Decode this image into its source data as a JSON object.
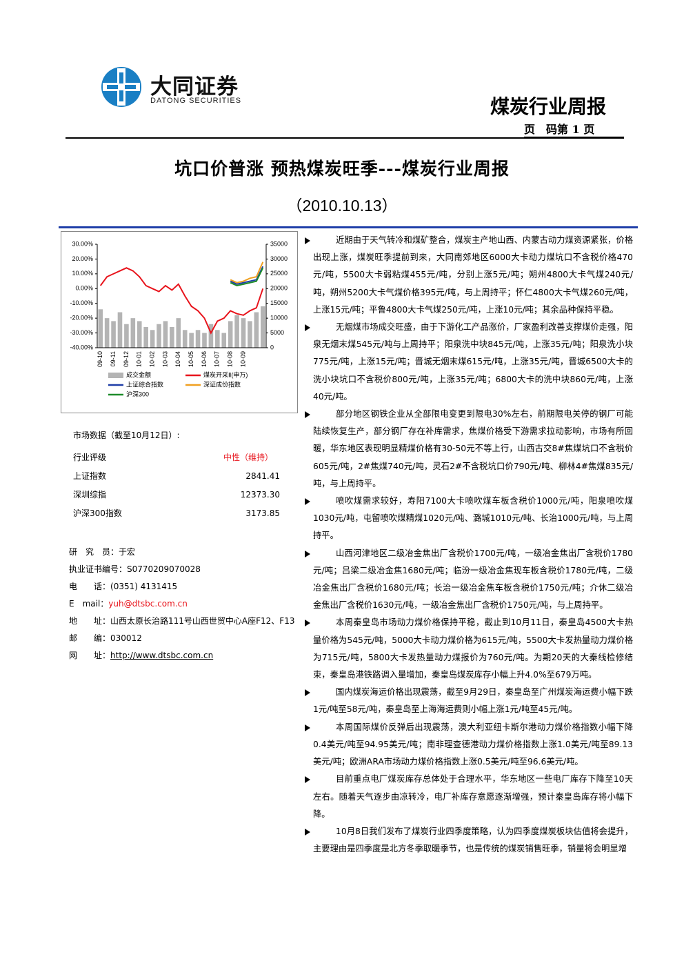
{
  "header": {
    "brand": "大同证券",
    "brand_en": "DATONG SECURITIES",
    "report_type": "煤炭行业周报",
    "page_label": "页　码第",
    "page_number": 1,
    "page_unit": "页"
  },
  "title": "坑口价普涨 预热煤炭旺季---煤炭行业周报",
  "date": "（2010.10.13）",
  "chart_data": {
    "type": "line",
    "categories": [
      "09-10",
      null,
      "09-11",
      null,
      "09-12",
      null,
      "10-01",
      null,
      "10-02",
      null,
      "10-03",
      null,
      "10-04",
      null,
      "10-05",
      null,
      "10-06",
      null,
      "10-07",
      null,
      "10-08",
      null,
      "10-09",
      null,
      null,
      null
    ],
    "ylim": [
      -40,
      30
    ],
    "yticks": [
      {
        "value": -40,
        "label": "-40.00%"
      },
      {
        "value": -30,
        "label": "-30.00%"
      },
      {
        "value": -20,
        "label": "-20.00%"
      },
      {
        "value": -10,
        "label": "-10.00%"
      },
      {
        "value": 0,
        "label": "0.00%"
      },
      {
        "value": 10,
        "label": "10.00%"
      },
      {
        "value": 20,
        "label": "20.00%"
      },
      {
        "value": 30,
        "label": "30.00%"
      }
    ],
    "y2lim": [
      0,
      35000
    ],
    "y2ticks": [
      0,
      5000,
      10000,
      15000,
      20000,
      25000,
      30000,
      35000
    ],
    "series": [
      {
        "name": "成交金额",
        "type": "bar",
        "axis": "y2",
        "color": "#b4b4b4",
        "values": [
          13000,
          10000,
          9000,
          12000,
          8000,
          10000,
          9000,
          7000,
          6000,
          8000,
          9000,
          7000,
          10000,
          6000,
          5000,
          6000,
          5000,
          8000,
          6000,
          5000,
          9000,
          11000,
          10000,
          9000,
          12000,
          14000
        ]
      },
      {
        "name": "煤炭开采Ⅱ(申万)",
        "color": "#e8141c",
        "values": [
          2,
          8,
          10,
          12,
          14,
          12,
          8,
          2,
          0,
          -2,
          2,
          -1,
          3,
          -5,
          -12,
          -15,
          -20,
          -30,
          -22,
          -20,
          -15,
          -17,
          -18,
          -15,
          -13,
          0
        ]
      },
      {
        "name": "上证综合指数",
        "color": "#1f3ea8",
        "values": [
          null,
          null,
          null,
          null,
          null,
          null,
          null,
          null,
          null,
          null,
          null,
          null,
          null,
          null,
          null,
          null,
          null,
          null,
          null,
          null,
          5,
          3,
          4,
          5,
          6,
          15
        ]
      },
      {
        "name": "深证成份指数",
        "color": "#f0a020",
        "values": [
          null,
          null,
          null,
          null,
          null,
          null,
          null,
          null,
          null,
          null,
          null,
          null,
          null,
          null,
          null,
          null,
          null,
          null,
          null,
          null,
          6,
          4,
          5,
          7,
          8,
          18
        ]
      },
      {
        "name": "沪深300",
        "color": "#1e8c2a",
        "values": [
          null,
          null,
          null,
          null,
          null,
          null,
          null,
          null,
          null,
          null,
          null,
          null,
          null,
          null,
          null,
          null,
          null,
          null,
          null,
          null,
          4,
          2,
          3,
          4,
          5,
          14
        ]
      }
    ]
  },
  "market": {
    "heading": "市场数据（截至10月12日）:",
    "rows": [
      [
        "行业评级",
        "中性（维持）"
      ],
      [
        "上证指数",
        "2841.41"
      ],
      [
        "深圳综指",
        "12373.30"
      ],
      [
        "沪深300指数",
        "3173.85"
      ]
    ]
  },
  "contacts": [
    [
      "研　究　员：",
      "于宏"
    ],
    [
      "执业证书编号：",
      "S0770209070028"
    ],
    [
      "电　　话：",
      "(0351) 4131415"
    ],
    [
      "E　mail：",
      "yuh@dtsbc.com.cn"
    ],
    [
      "地　　址：",
      "山西太原长治路111号山西世贸中心A座F12、F13"
    ],
    [
      "邮　　编：",
      "030012"
    ],
    [
      "网　　址：",
      "http://www.dtsbc.com.cn"
    ]
  ],
  "bullets": [
    "近期由于天气转冷和煤矿整合，煤炭主产地山西、内蒙古动力煤资源紧张，价格出现上涨，煤炭旺季提前到来，大同南郊地区6000大卡动力煤坑口不含税价格470元/吨，5500大卡弱粘煤455元/吨，分别上涨5元/吨；朔州4800大卡气煤240元/吨，朔州5200大卡气煤价格395元/吨，与上周持平；怀仁4800大卡气煤260元/吨，上涨15元/吨；平鲁4800大卡气煤250元/吨，上涨10元/吨；其余品种保持平稳。",
    "无烟煤市场成交旺盛，由于下游化工产品涨价，厂家盈利改善支撑煤价走强，阳泉无烟末煤545元/吨与上周持平；阳泉洗中块845元/吨，上涨35元/吨；阳泉洗小块775元/吨，上涨15元/吨；晋城无烟末煤615元/吨，上涨35元/吨，晋城6500大卡的洗小块坑口不含税价800元/吨，上涨35元/吨；6800大卡的洗中块860元/吨，上涨40元/吨。",
    "部分地区钢铁企业从全部限电变更到限电30%左右，前期限电关停的钢厂可能陆续恢复生产，部分钢厂存在补库需求，焦煤价格受下游需求拉动影响，市场有所回暖，华东地区表现明显精煤价格有30-50元不等上行，山西古交8#焦煤坑口不含税价605元/吨，2#焦煤740元/吨，灵石2#不含税坑口价790元/吨、柳林4#焦煤835元/吨，与上周持平。",
    "喷吹煤需求较好，寿阳7100大卡喷吹煤车板含税价1000元/吨，阳泉喷吹煤1030元/吨，屯留喷吹煤精煤1020元/吨、潞城1010元/吨、长治1000元/吨，与上周持平。",
    "山西河津地区二级冶金焦出厂含税价1700元/吨，一级冶金焦出厂含税价1780元/吨；吕梁二级冶金焦1680元/吨；临汾一级冶金焦现车板含税价1780元/吨，二级冶金焦出厂含税价1680元/吨；长治一级冶金焦车板含税价1750元/吨；介休二级冶金焦出厂含税价1630元/吨，一级冶金焦出厂含税价1750元/吨，与上周持平。",
    "本周秦皇岛市场动力煤价格保持平稳，截止到10月11日，秦皇岛4500大卡热量价格为545元/吨，5000大卡动力煤价格为615元/吨，5500大卡发热量动力煤价格为715元/吨，5800大卡发热量动力煤报价为760元/吨。为期20天的大秦线检修结束，秦皇岛港铁路调入量增加，秦皇岛煤炭库存小幅上升4.0%至679万吨。",
    "国内煤炭海运价格出现震荡，截至9月29日，秦皇岛至广州煤炭海运费小幅下跌1元/吨至58元/吨，秦皇岛至上海海运费则小幅上涨1元/吨至45元/吨。",
    "本周国际煤价反弹后出现震荡，澳大利亚纽卡斯尔港动力煤价格指数小幅下降0.4美元/吨至94.95美元/吨；南非理查德港动力煤价格指数上涨1.0美元/吨至89.13美元/吨；欧洲ARA市场动力煤价格指数上涨0.5美元/吨至96.6美元/吨。",
    "目前重点电厂煤炭库存总体处于合理水平，华东地区一些电厂库存下降至10天左右。随着天气逐步由凉转冷，电厂补库存意愿逐渐增强，预计秦皇岛库存将小幅下降。",
    "10月8日我们发布了煤炭行业四季度策略，认为四季度煤炭板块估值将会提升，主要理由是四季度是北方冬季取暖季节，也是传统的煤炭销售旺季，销量将会明显增"
  ]
}
